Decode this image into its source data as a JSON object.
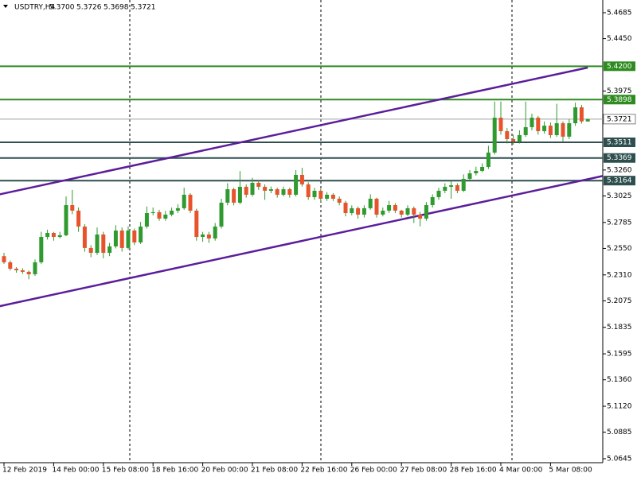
{
  "chart_data": {
    "type": "candlestick",
    "header": {
      "symbol": "USDTRY,H4",
      "values": [
        "5.3700",
        "5.3726",
        "5.3698",
        "5.3721"
      ]
    },
    "categories": [
      "12 Feb 2019",
      null,
      null,
      null,
      null,
      null,
      null,
      null,
      "14 Feb 00:00",
      null,
      null,
      null,
      null,
      null,
      null,
      null,
      "15 Feb 08:00",
      null,
      null,
      null,
      null,
      null,
      null,
      null,
      "18 Feb 16:00",
      null,
      null,
      null,
      null,
      null,
      null,
      null,
      "20 Feb 00:00",
      null,
      null,
      null,
      null,
      null,
      null,
      null,
      "21 Feb 08:00",
      null,
      null,
      null,
      null,
      null,
      null,
      null,
      "22 Feb 16:00",
      null,
      null,
      null,
      null,
      null,
      null,
      null,
      "26 Feb 00:00",
      null,
      null,
      null,
      null,
      null,
      null,
      null,
      "27 Feb 08:00",
      null,
      null,
      null,
      null,
      null,
      null,
      null,
      "28 Feb 16:00",
      null,
      null,
      null,
      null,
      null,
      null,
      null,
      "4 Mar 00:00",
      null,
      null,
      null,
      null,
      null,
      null,
      null,
      "5 Mar 08:00",
      null,
      null,
      null,
      null,
      null,
      null
    ],
    "open": [
      5.248,
      5.2424,
      5.2366,
      5.2352,
      5.2338,
      5.2316,
      5.2424,
      5.2654,
      5.269,
      5.2654,
      5.2669,
      5.2942,
      5.2892,
      5.2748,
      5.2554,
      5.251,
      5.2676,
      5.251,
      5.2568,
      5.2712,
      5.2554,
      5.2712,
      5.2604,
      5.2748,
      5.287,
      5.2878,
      5.282,
      5.2856,
      5.2892,
      5.2914,
      5.3036,
      5.2892,
      5.2654,
      5.2676,
      5.264,
      5.2748,
      5.2964,
      5.3086,
      5.2964,
      5.3108,
      5.3036,
      5.3144,
      5.3108,
      5.3072,
      5.3086,
      5.3036,
      5.3086,
      5.3036,
      5.3216,
      5.313,
      5.3014,
      5.3072,
      5.3,
      5.3036,
      5.3,
      5.2964,
      5.287,
      5.2914,
      5.2856,
      5.2914,
      5.3,
      5.2856,
      5.2892,
      5.2942,
      5.2892,
      5.2856,
      5.2914,
      5.2856,
      5.282,
      5.2942,
      5.3014,
      5.3072,
      5.3108,
      5.3122,
      5.3072,
      5.318,
      5.323,
      5.3252,
      5.3288,
      5.3418,
      5.3734,
      5.3612,
      5.354,
      5.3518,
      5.3576,
      5.3648,
      5.3734,
      5.3612,
      5.3662,
      5.3576,
      5.3684,
      5.3562,
      5.3684,
      5.3828,
      5.37
    ],
    "high": [
      5.251,
      5.244,
      5.238,
      5.237,
      5.235,
      5.245,
      5.27,
      5.272,
      5.27,
      5.27,
      5.302,
      5.308,
      5.292,
      5.277,
      5.258,
      5.274,
      5.27,
      5.26,
      5.276,
      5.274,
      5.275,
      5.273,
      5.279,
      5.293,
      5.292,
      5.29,
      5.289,
      5.292,
      5.295,
      5.31,
      5.305,
      5.291,
      5.27,
      5.27,
      5.278,
      5.3,
      5.314,
      5.31,
      5.325,
      5.313,
      5.319,
      5.317,
      5.313,
      5.311,
      5.31,
      5.311,
      5.31,
      5.326,
      5.328,
      5.315,
      5.31,
      5.309,
      5.306,
      5.305,
      5.302,
      5.298,
      5.294,
      5.293,
      5.294,
      5.304,
      5.301,
      5.292,
      5.298,
      5.296,
      5.29,
      5.294,
      5.293,
      5.288,
      5.297,
      5.304,
      5.31,
      5.314,
      5.316,
      5.314,
      5.322,
      5.326,
      5.329,
      5.332,
      5.348,
      5.388,
      5.388,
      5.364,
      5.358,
      5.362,
      5.388,
      5.377,
      5.375,
      5.37,
      5.369,
      5.386,
      5.37,
      5.372,
      5.387,
      5.385,
      5.3726
    ],
    "low": [
      5.241,
      5.235,
      5.233,
      5.232,
      5.227,
      5.23,
      5.241,
      5.263,
      5.262,
      5.264,
      5.266,
      5.286,
      5.27,
      5.252,
      5.247,
      5.249,
      5.246,
      5.248,
      5.255,
      5.252,
      5.254,
      5.258,
      5.259,
      5.273,
      5.285,
      5.28,
      5.28,
      5.284,
      5.287,
      5.29,
      5.287,
      5.262,
      5.261,
      5.26,
      5.262,
      5.273,
      5.294,
      5.294,
      5.295,
      5.301,
      5.302,
      5.308,
      5.299,
      5.305,
      5.301,
      5.302,
      5.301,
      5.302,
      5.311,
      5.299,
      5.299,
      5.297,
      5.298,
      5.298,
      5.294,
      5.284,
      5.285,
      5.282,
      5.283,
      5.29,
      5.283,
      5.284,
      5.287,
      5.287,
      5.283,
      5.284,
      5.278,
      5.275,
      5.28,
      5.292,
      5.299,
      5.305,
      5.3,
      5.305,
      5.306,
      5.317,
      5.321,
      5.324,
      5.327,
      5.34,
      5.358,
      5.35,
      5.349,
      5.35,
      5.356,
      5.362,
      5.358,
      5.359,
      5.355,
      5.356,
      5.352,
      5.354,
      5.366,
      5.368,
      5.3698
    ],
    "close": [
      5.2424,
      5.2366,
      5.2352,
      5.2338,
      5.2316,
      5.2424,
      5.2654,
      5.269,
      5.2654,
      5.2669,
      5.2942,
      5.2892,
      5.2748,
      5.2554,
      5.251,
      5.2676,
      5.251,
      5.2568,
      5.2712,
      5.2554,
      5.2712,
      5.2604,
      5.2748,
      5.287,
      5.2878,
      5.282,
      5.2856,
      5.2892,
      5.2914,
      5.3036,
      5.2892,
      5.2654,
      5.2676,
      5.264,
      5.2748,
      5.2964,
      5.3086,
      5.2964,
      5.3108,
      5.3036,
      5.3144,
      5.3108,
      5.3072,
      5.3086,
      5.3036,
      5.3086,
      5.3036,
      5.3216,
      5.313,
      5.3014,
      5.3072,
      5.3,
      5.3036,
      5.3,
      5.2964,
      5.287,
      5.2914,
      5.2856,
      5.2914,
      5.3,
      5.2856,
      5.2892,
      5.2942,
      5.2892,
      5.2856,
      5.2914,
      5.2856,
      5.282,
      5.2942,
      5.3014,
      5.3072,
      5.3108,
      5.3122,
      5.3072,
      5.318,
      5.323,
      5.3252,
      5.3288,
      5.3418,
      5.3734,
      5.3612,
      5.354,
      5.3518,
      5.3576,
      5.3648,
      5.3734,
      5.3612,
      5.3662,
      5.3576,
      5.3684,
      5.3562,
      5.3684,
      5.3828,
      5.37,
      5.3721
    ],
    "up_color": "#2f9a2f",
    "down_color": "#e8532b",
    "ylim": [
      5.0609,
      5.48
    ],
    "yticks": [
      5.4685,
      {
        "value": 5.445,
        "label": "5.4450"
      },
      5.3975,
      {
        "value": 5.326,
        "label": "5.3260"
      },
      5.3025,
      5.2785,
      {
        "value": 5.255,
        "label": "5.2550"
      },
      {
        "value": 5.231,
        "label": "5.2310"
      },
      5.2075,
      5.1835,
      5.1595,
      {
        "value": 5.136,
        "label": "5.1360"
      },
      {
        "value": 5.112,
        "label": "5.1120"
      },
      5.0885,
      5.0645
    ],
    "levels": [
      {
        "value": 5.42,
        "label": "5.4200",
        "color": "#2e8b1f"
      },
      {
        "value": 5.3898,
        "label": "5.3898",
        "color": "#2e8b1f"
      },
      {
        "value": 5.3511,
        "label": "5.3511",
        "color": "#2f4f4f"
      },
      {
        "value": 5.3369,
        "label": "5.3369",
        "color": "#2f4f4f"
      },
      {
        "value": 5.3164,
        "label": "5.3164",
        "color": "#2f4f4f"
      }
    ],
    "current_price": 5.3721,
    "trendlines": [
      {
        "x": [
          -1,
          94
        ],
        "values": [
          5.3036,
          5.4188
        ],
        "color": "#5b1e9a"
      },
      {
        "x": [
          -1,
          96.4
        ],
        "values": [
          5.2023,
          5.3206
        ],
        "color": "#5b1e9a"
      }
    ]
  }
}
